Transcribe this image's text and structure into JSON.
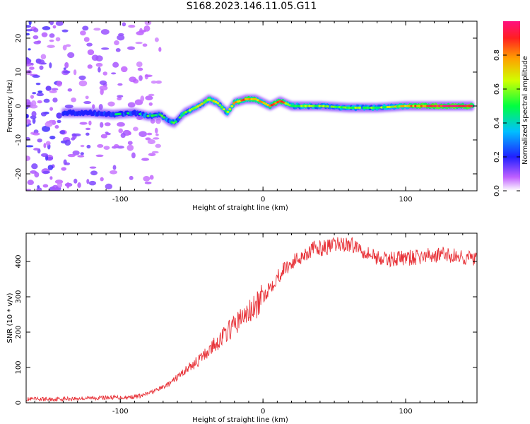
{
  "title": "S168.2023.146.11.05.G11",
  "colors": {
    "snr_line": "#e8343a",
    "band_core": "#e0206a",
    "scatter": "#8a30e0"
  },
  "chart_data": [
    {
      "type": "heatmap",
      "xlabel": "Height of straight line (km)",
      "ylabel": "Frequency (Hz)",
      "xlim": [
        -166,
        150
      ],
      "ylim": [
        -25,
        25
      ],
      "xticks": [
        -100,
        0,
        100
      ],
      "yticks": [
        -20,
        -10,
        0,
        10,
        20
      ],
      "grid": false,
      "colorbar": {
        "label": "Normalized spectral amplitude",
        "range": [
          0,
          1
        ],
        "ticks": [
          0.0,
          0.2,
          0.4,
          0.6,
          0.8
        ],
        "colormap": "rainbow"
      },
      "ridge": {
        "description_points_x": [
          -135,
          -120,
          -105,
          -90,
          -80,
          -72,
          -66,
          -62,
          -55,
          -45,
          -38,
          -32,
          -25,
          -20,
          -12,
          -5,
          0,
          5,
          12,
          20,
          40,
          60,
          80,
          100,
          120,
          145
        ],
        "frequency": [
          -2,
          -2,
          -2.5,
          -2,
          -3,
          -2.5,
          -4.5,
          -5,
          -2,
          0,
          2,
          1,
          -2,
          1,
          2,
          2,
          1,
          0,
          1.5,
          0,
          0,
          -0.5,
          -0.5,
          0,
          0,
          0
        ],
        "amplitude": [
          0.25,
          0.3,
          0.35,
          0.4,
          0.45,
          0.45,
          0.5,
          0.5,
          0.55,
          0.6,
          0.7,
          0.55,
          0.6,
          0.75,
          0.8,
          0.8,
          0.7,
          0.75,
          0.9,
          0.6,
          0.55,
          0.55,
          0.55,
          0.7,
          0.95,
          0.95
        ]
      }
    },
    {
      "type": "line",
      "xlabel": "Height of straight line (km)",
      "ylabel": "SNR (10 * v/v)",
      "xlim": [
        -166,
        150
      ],
      "ylim": [
        0,
        480
      ],
      "xticks": [
        -100,
        0,
        100
      ],
      "yticks": [
        0,
        100,
        200,
        300,
        400
      ],
      "grid": false,
      "series": [
        {
          "x": [
            -166,
            -150,
            -130,
            -110,
            -95,
            -85,
            -75,
            -65,
            -55,
            -45,
            -35,
            -25,
            -15,
            -5,
            5,
            15,
            25,
            35,
            45,
            55,
            65,
            75,
            85,
            95,
            105,
            115,
            125,
            135,
            145,
            150
          ],
          "values": [
            10,
            10,
            12,
            15,
            15,
            20,
            35,
            55,
            90,
            120,
            160,
            200,
            240,
            270,
            330,
            380,
            410,
            435,
            440,
            450,
            445,
            420,
            405,
            410,
            410,
            415,
            420,
            415,
            410,
            405
          ]
        }
      ]
    }
  ]
}
